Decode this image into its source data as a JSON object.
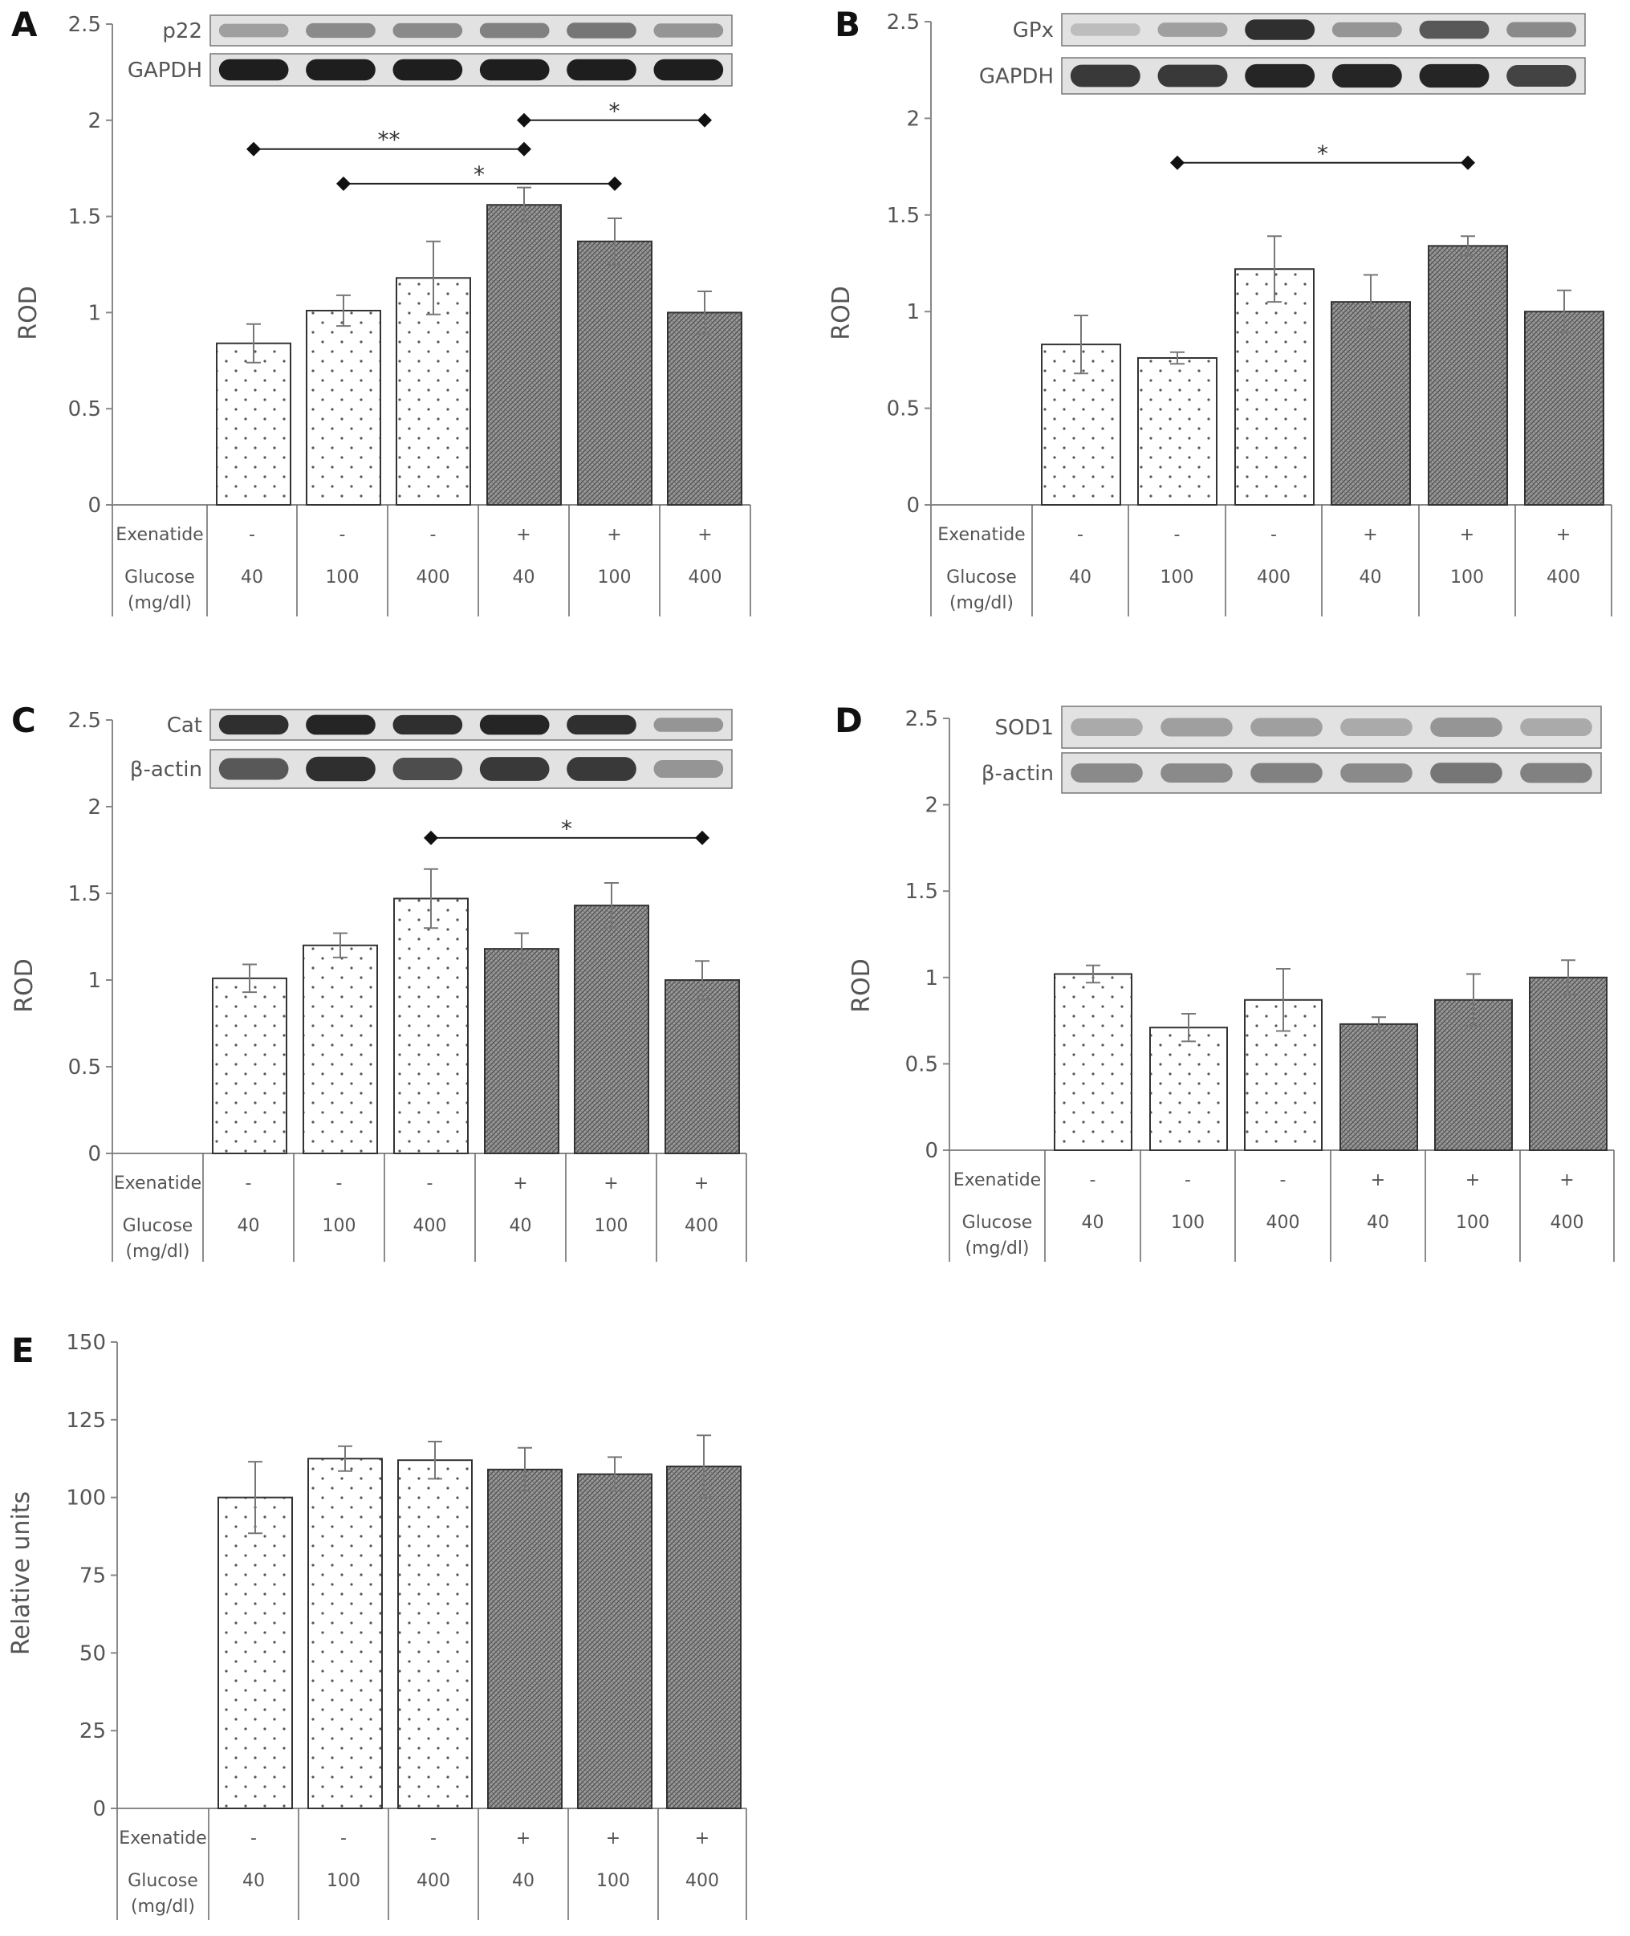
{
  "chart_data": [
    {
      "type": "bar",
      "panel_label": "A",
      "ylabel": "ROD",
      "ylim": [
        0,
        2.5
      ],
      "yticks": [
        "0",
        "0.5",
        "1",
        "1.5",
        "2",
        "2.5"
      ],
      "categories": [
        "1",
        "2",
        "3",
        "4",
        "5",
        "6"
      ],
      "row_labels": [
        "Exenatide",
        "Glucose",
        "(mg/dl)"
      ],
      "exenatide": [
        "-",
        "-",
        "-",
        "+",
        "+",
        "+"
      ],
      "glucose": [
        "40",
        "100",
        "400",
        "40",
        "100",
        "400"
      ],
      "values": [
        0.84,
        1.01,
        1.18,
        1.56,
        1.37,
        1.0
      ],
      "errors": [
        0.1,
        0.08,
        0.19,
        0.09,
        0.12,
        0.11
      ],
      "fills": [
        "dots",
        "dots",
        "dots",
        "hatch",
        "hatch",
        "hatch"
      ],
      "blots": [
        "p22",
        "GAPDH"
      ],
      "significance": [
        {
          "from": 1,
          "to": 4,
          "y": 1.85,
          "label": "**"
        },
        {
          "from": 2,
          "to": 5,
          "y": 1.67,
          "label": "*"
        },
        {
          "from": 4,
          "to": 6,
          "y": 2.0,
          "label": "*"
        }
      ]
    },
    {
      "type": "bar",
      "panel_label": "B",
      "ylabel": "ROD",
      "ylim": [
        0,
        2.5
      ],
      "yticks": [
        "0",
        "0.5",
        "1",
        "1.5",
        "2",
        "2.5"
      ],
      "categories": [
        "1",
        "2",
        "3",
        "4",
        "5",
        "6"
      ],
      "row_labels": [
        "Exenatide",
        "Glucose",
        "(mg/dl)"
      ],
      "exenatide": [
        "-",
        "-",
        "-",
        "+",
        "+",
        "+"
      ],
      "glucose": [
        "40",
        "100",
        "400",
        "40",
        "100",
        "400"
      ],
      "values": [
        0.83,
        0.76,
        1.22,
        1.05,
        1.34,
        1.0
      ],
      "errors": [
        0.15,
        0.03,
        0.17,
        0.14,
        0.05,
        0.11
      ],
      "fills": [
        "dots",
        "dots",
        "dots",
        "hatch",
        "hatch",
        "hatch"
      ],
      "blots": [
        "GPx",
        "GAPDH"
      ],
      "significance": [
        {
          "from": 2,
          "to": 5,
          "y": 1.77,
          "label": "*"
        }
      ]
    },
    {
      "type": "bar",
      "panel_label": "C",
      "ylabel": "ROD",
      "ylim": [
        0,
        2.5
      ],
      "yticks": [
        "0",
        "0.5",
        "1",
        "1.5",
        "2",
        "2.5"
      ],
      "categories": [
        "1",
        "2",
        "3",
        "4",
        "5",
        "6"
      ],
      "row_labels": [
        "Exenatide",
        "Glucose",
        "(mg/dl)"
      ],
      "exenatide": [
        "-",
        "-",
        "-",
        "+",
        "+",
        "+"
      ],
      "glucose": [
        "40",
        "100",
        "400",
        "40",
        "100",
        "400"
      ],
      "values": [
        1.01,
        1.2,
        1.47,
        1.18,
        1.43,
        1.0
      ],
      "errors": [
        0.08,
        0.07,
        0.17,
        0.09,
        0.13,
        0.11
      ],
      "fills": [
        "dots",
        "dots",
        "dots",
        "hatch",
        "hatch",
        "hatch"
      ],
      "blots": [
        "Cat",
        "β-actin"
      ],
      "significance": [
        {
          "from": 3,
          "to": 6,
          "y": 1.82,
          "label": "*"
        }
      ]
    },
    {
      "type": "bar",
      "panel_label": "D",
      "ylabel": "ROD",
      "ylim": [
        0,
        2.5
      ],
      "yticks": [
        "0",
        "0.5",
        "1",
        "1.5",
        "2",
        "2.5"
      ],
      "categories": [
        "1",
        "2",
        "3",
        "4",
        "5",
        "6"
      ],
      "row_labels": [
        "Exenatide",
        "Glucose",
        "(mg/dl)"
      ],
      "exenatide": [
        "-",
        "-",
        "-",
        "+",
        "+",
        "+"
      ],
      "glucose": [
        "40",
        "100",
        "400",
        "40",
        "100",
        "400"
      ],
      "values": [
        1.02,
        0.71,
        0.87,
        0.73,
        0.87,
        1.0
      ],
      "errors": [
        0.05,
        0.08,
        0.18,
        0.04,
        0.15,
        0.1
      ],
      "fills": [
        "dots",
        "dots",
        "dots",
        "hatch",
        "hatch",
        "hatch"
      ],
      "blots": [
        "SOD1",
        "β-actin"
      ],
      "significance": []
    },
    {
      "type": "bar",
      "panel_label": "E",
      "ylabel": "Relative units",
      "ylim": [
        0,
        150
      ],
      "yticks": [
        "0",
        "25",
        "50",
        "75",
        "100",
        "125",
        "150"
      ],
      "categories": [
        "1",
        "2",
        "3",
        "4",
        "5",
        "6"
      ],
      "row_labels": [
        "Exenatide",
        "Glucose",
        "(mg/dl)"
      ],
      "exenatide": [
        "-",
        "-",
        "-",
        "+",
        "+",
        "+"
      ],
      "glucose": [
        "40",
        "100",
        "400",
        "40",
        "100",
        "400"
      ],
      "values": [
        100,
        112.5,
        112,
        109,
        107.5,
        110
      ],
      "errors": [
        11.5,
        4,
        6,
        7,
        5.5,
        10
      ],
      "fills": [
        "dots",
        "dots",
        "dots",
        "hatch",
        "hatch",
        "hatch"
      ],
      "blots": [],
      "significance": []
    }
  ]
}
